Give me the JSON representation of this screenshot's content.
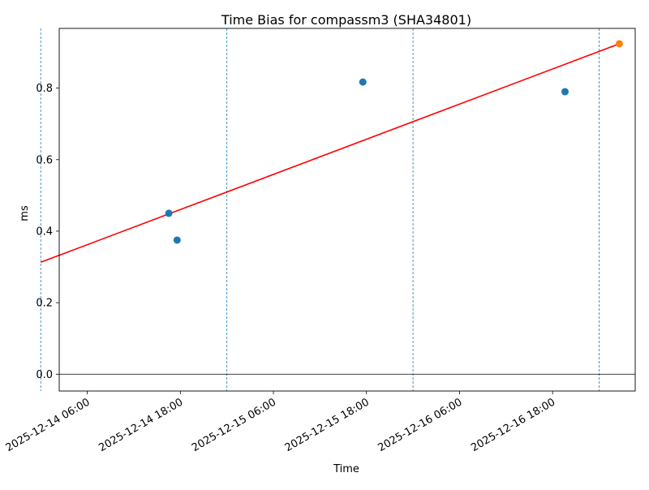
{
  "chart_data": {
    "type": "scatter",
    "title": "Time Bias for compassm3 (SHA34801)",
    "xlabel": "Time",
    "ylabel": "ms",
    "xlim": [
      "2025-12-14 02:23",
      "2025-12-17 04:39"
    ],
    "ylim": [
      -0.047,
      0.967
    ],
    "x_ticks": [
      "2025-12-14 06:00",
      "2025-12-14 18:00",
      "2025-12-15 06:00",
      "2025-12-15 18:00",
      "2025-12-16 06:00",
      "2025-12-16 18:00"
    ],
    "y_ticks": [
      "0.0",
      "0.2",
      "0.4",
      "0.6",
      "0.8"
    ],
    "day_boundaries": [
      "2025-12-14 00:00",
      "2025-12-15 00:00",
      "2025-12-16 00:00",
      "2025-12-17 00:00"
    ],
    "zero_line": 0,
    "series": [
      {
        "color": "#1f77b4",
        "points": [
          {
            "x": "2025-12-14 16:31",
            "y": 0.45
          },
          {
            "x": "2025-12-14 17:35",
            "y": 0.375
          },
          {
            "x": "2025-12-15 17:32",
            "y": 0.817
          },
          {
            "x": "2025-12-16 19:36",
            "y": 0.79
          }
        ]
      },
      {
        "color": "#ff7f0e",
        "points": [
          {
            "x": "2025-12-17 02:36",
            "y": 0.924
          }
        ]
      }
    ],
    "trend_line": {
      "color": "#ff0000",
      "points": [
        {
          "x": "2025-12-14 00:00",
          "y": 0.313
        },
        {
          "x": "2025-12-17 02:36",
          "y": 0.924
        }
      ]
    },
    "grid": false,
    "colors": {
      "day_boundary": "#1f77b4",
      "zero_line": "#000000",
      "axes": "#000000"
    }
  }
}
